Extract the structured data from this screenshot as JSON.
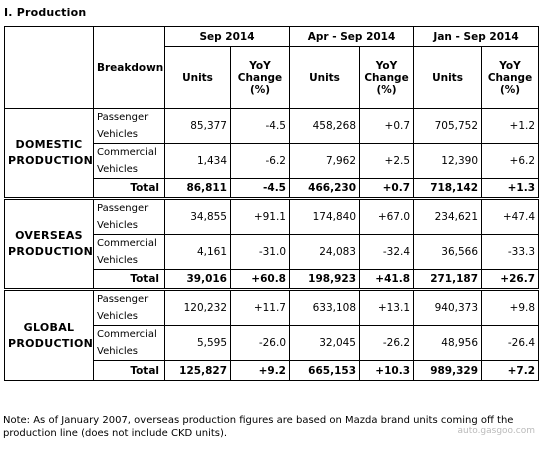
{
  "title": "I. Production",
  "header": {
    "breakdown": "Breakdown",
    "periods": [
      "Sep 2014",
      "Apr - Sep 2014",
      "Jan - Sep 2014"
    ],
    "units": "Units",
    "yoy_line1": "YoY",
    "yoy_line2": "Change",
    "yoy_line3": "(%)"
  },
  "sections": [
    {
      "label_line1": "DOMESTIC",
      "label_line2": "PRODUCTION",
      "rows": [
        {
          "label_line1": "Passenger",
          "label_line2": "Vehicles",
          "values": [
            "85,377",
            "-4.5",
            "458,268",
            "+0.7",
            "705,752",
            "+1.2"
          ]
        },
        {
          "label_line1": "Commercial",
          "label_line2": "Vehicles",
          "values": [
            "1,434",
            "-6.2",
            "7,962",
            "+2.5",
            "12,390",
            "+6.2"
          ]
        }
      ],
      "total": {
        "label": "Total",
        "values": [
          "86,811",
          "-4.5",
          "466,230",
          "+0.7",
          "718,142",
          "+1.3"
        ]
      }
    },
    {
      "label_line1": "OVERSEAS",
      "label_line2": "PRODUCTION",
      "rows": [
        {
          "label_line1": "Passenger",
          "label_line2": "Vehicles",
          "values": [
            "34,855",
            "+91.1",
            "174,840",
            "+67.0",
            "234,621",
            "+47.4"
          ]
        },
        {
          "label_line1": "Commercial",
          "label_line2": "Vehicles",
          "values": [
            "4,161",
            "-31.0",
            "24,083",
            "-32.4",
            "36,566",
            "-33.3"
          ]
        }
      ],
      "total": {
        "label": "Total",
        "values": [
          "39,016",
          "+60.8",
          "198,923",
          "+41.8",
          "271,187",
          "+26.7"
        ]
      }
    },
    {
      "label_line1": "GLOBAL",
      "label_line2": "PRODUCTION",
      "rows": [
        {
          "label_line1": "Passenger",
          "label_line2": "Vehicles",
          "values": [
            "120,232",
            "+11.7",
            "633,108",
            "+13.1",
            "940,373",
            "+9.8"
          ]
        },
        {
          "label_line1": "Commercial",
          "label_line2": "Vehicles",
          "values": [
            "5,595",
            "-26.0",
            "32,045",
            "-26.2",
            "48,956",
            "-26.4"
          ]
        }
      ],
      "total": {
        "label": "Total",
        "values": [
          "125,827",
          "+9.2",
          "665,153",
          "+10.3",
          "989,329",
          "+7.2"
        ]
      }
    }
  ],
  "note": "Note: As of January 2007, overseas production figures are based on Mazda brand units coming off the production line (does not include CKD units).",
  "watermark": "auto.gasgoo.com"
}
